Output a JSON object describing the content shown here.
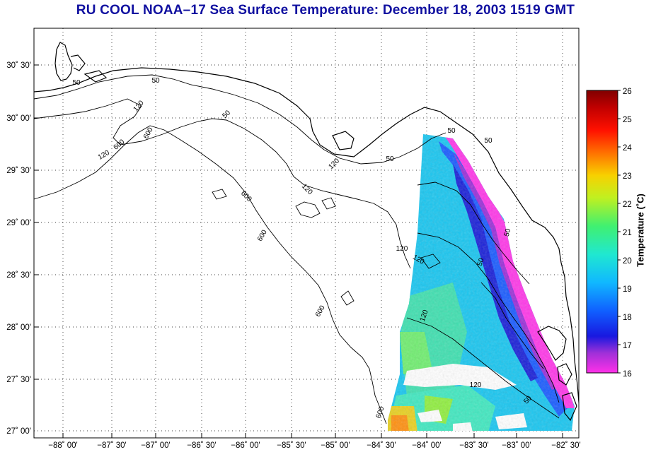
{
  "title": "RU COOL  NOAA–17  Sea Surface Temperature:  December 18, 2003 1519 GMT",
  "map": {
    "lat_ticks": [
      "30˚ 30'",
      "30˚ 00'",
      "29˚ 30'",
      "29˚ 00'",
      "28˚ 30'",
      "28˚ 00'",
      "27˚ 30'",
      "27˚ 00'"
    ],
    "lon_ticks": [
      "−88˚ 00'",
      "−87˚ 30'",
      "−87˚ 00'",
      "−86˚ 30'",
      "−86˚ 00'",
      "−85˚ 30'",
      "−85˚ 00'",
      "−84˚ 30'",
      "−84˚ 00'",
      "−83˚ 30'",
      "−83˚ 00'",
      "−82˚ 30'"
    ],
    "contour_labels": [
      "50",
      "120",
      "600",
      "50",
      "120",
      "600",
      "50",
      "120",
      "600",
      "120",
      "120",
      "600",
      "50",
      "600",
      "120",
      "120",
      "50",
      "120",
      "50",
      "600",
      "50",
      "50",
      "50"
    ]
  },
  "colorbar": {
    "labels": [
      "26",
      "25",
      "24",
      "23",
      "22",
      "21",
      "20",
      "19",
      "18",
      "17",
      "16"
    ],
    "title": "Temperature (˚C)",
    "colors": [
      "#ff40e0",
      "#8830d0",
      "#1818e0",
      "#1060ff",
      "#10b8ff",
      "#20e8d0",
      "#40f070",
      "#c0f020",
      "#f8d000",
      "#ff7000",
      "#ff1000",
      "#c00000",
      "#800000"
    ]
  }
}
